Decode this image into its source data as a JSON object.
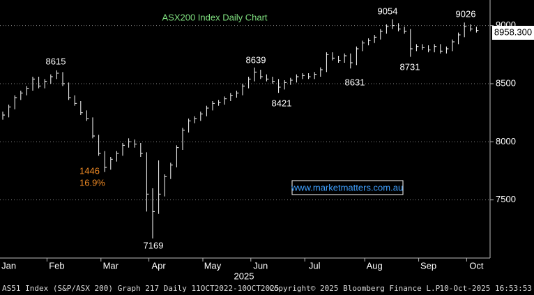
{
  "chart_data": {
    "type": "ohlc",
    "title": "ASX200 Index Daily Chart",
    "x_axis_label": "2025",
    "categories": [
      null,
      "Jan",
      null,
      null,
      null,
      null,
      null,
      null,
      null,
      "Feb",
      null,
      null,
      null,
      null,
      null,
      null,
      null,
      null,
      "Mar",
      null,
      null,
      null,
      null,
      null,
      null,
      null,
      "Apr",
      null,
      null,
      null,
      null,
      null,
      null,
      null,
      null,
      "May",
      null,
      null,
      null,
      null,
      null,
      null,
      null,
      "Jun",
      null,
      null,
      null,
      null,
      null,
      null,
      null,
      null,
      "Jul",
      null,
      null,
      null,
      null,
      null,
      null,
      null,
      null,
      null,
      "Aug",
      null,
      null,
      null,
      null,
      null,
      null,
      null,
      null,
      "Sep",
      null,
      null,
      null,
      null,
      null,
      null,
      null,
      "Oct"
    ],
    "series": [
      {
        "name": "high",
        "color": "#ffffff",
        "values": [
          8260,
          8320,
          8400,
          8440,
          8480,
          8560,
          8560,
          8540,
          8580,
          8615,
          8600,
          8510,
          8400,
          8350,
          8270,
          8210,
          8060,
          7920,
          7870,
          7920,
          7990,
          8030,
          8020,
          7990,
          7910,
          7600,
          7840,
          7720,
          7820,
          7970,
          8120,
          8200,
          8220,
          8260,
          8310,
          8350,
          8360,
          8390,
          8420,
          8440,
          8500,
          8560,
          8639,
          8620,
          8580,
          8560,
          8540,
          8530,
          8550,
          8580,
          8590,
          8590,
          8600,
          8640,
          8770,
          8770,
          8740,
          8760,
          8760,
          8820,
          8870,
          8890,
          8920,
          8970,
          9010,
          9054,
          9020,
          8990,
          8970,
          8840,
          8840,
          8830,
          8840,
          8840,
          8820,
          8880,
          8940,
          9026,
          9010,
          8990
        ]
      },
      {
        "name": "low",
        "color": "#ffffff",
        "values": [
          8190,
          8210,
          8280,
          8360,
          8400,
          8440,
          8460,
          8460,
          8500,
          8540,
          8480,
          8360,
          8310,
          8230,
          8180,
          8030,
          7880,
          7740,
          7760,
          7830,
          7880,
          7950,
          7950,
          7870,
          7400,
          7169,
          7380,
          7530,
          7680,
          7780,
          7930,
          8080,
          8160,
          8180,
          8220,
          8270,
          8310,
          8320,
          8350,
          8380,
          8400,
          8460,
          8520,
          8540,
          8520,
          8500,
          8421,
          8450,
          8490,
          8510,
          8540,
          8540,
          8540,
          8560,
          8600,
          8700,
          8680,
          8680,
          8631,
          8660,
          8780,
          8830,
          8850,
          8880,
          8930,
          8970,
          8950,
          8930,
          8731,
          8780,
          8790,
          8770,
          8770,
          8760,
          8760,
          8780,
          8840,
          8900,
          8950,
          8940
        ]
      },
      {
        "name": "close",
        "color": "#ffffff",
        "values": [
          8230,
          8300,
          8380,
          8420,
          8460,
          8540,
          8480,
          8520,
          8560,
          8590,
          8500,
          8380,
          8330,
          8250,
          8200,
          8050,
          7900,
          7780,
          7850,
          7900,
          7970,
          8000,
          7980,
          7900,
          7550,
          7400,
          7550,
          7700,
          7800,
          7950,
          8100,
          8180,
          8200,
          8240,
          8290,
          8330,
          8340,
          8370,
          8400,
          8420,
          8480,
          8540,
          8600,
          8560,
          8540,
          8520,
          8470,
          8510,
          8530,
          8560,
          8570,
          8560,
          8580,
          8620,
          8750,
          8720,
          8700,
          8740,
          8680,
          8800,
          8850,
          8870,
          8900,
          8950,
          8990,
          9000,
          8970,
          8950,
          8800,
          8820,
          8810,
          8790,
          8820,
          8780,
          8800,
          8860,
          8920,
          8990,
          8970,
          8958.3
        ]
      }
    ],
    "ylim": [
      7000,
      9220
    ],
    "yticks": [
      7500,
      8000,
      8500,
      9000
    ],
    "grid": true,
    "annotations": [
      "8615",
      "8639",
      "9054",
      "9026",
      "8421",
      "8631",
      "8731",
      "7169",
      "1446",
      "16.9%",
      "www.marketmatters.com.au",
      "8958.300"
    ],
    "footer": [
      "AS51 Index (S&P/ASX 200) Graph 217 Daily 11OCT2022-10OCT2025",
      "Copyright© 2025 Bloomberg Finance L.P.",
      "10-Oct-2025 16:53:53"
    ]
  }
}
